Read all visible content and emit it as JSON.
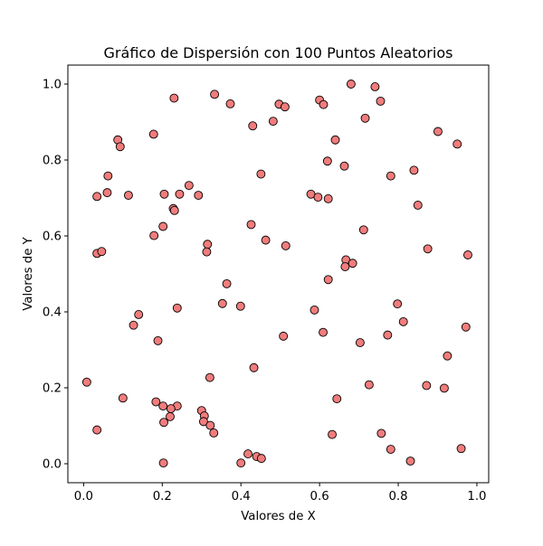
{
  "colors": {
    "point_fill": "#f07c7c",
    "point_edge": "#000000",
    "axis": "#000000"
  },
  "chart_data": {
    "type": "scatter",
    "title": "Gráfico de Dispersión con 100 Puntos Aleatorios",
    "xlabel": "Valores de X",
    "ylabel": "Valores de Y",
    "xlim": [
      -0.04,
      1.03
    ],
    "ylim": [
      -0.05,
      1.05
    ],
    "xticks": [
      "0.0",
      "0.2",
      "0.4",
      "0.6",
      "0.8",
      "1.0"
    ],
    "yticks": [
      "0.0",
      "0.2",
      "0.4",
      "0.6",
      "0.8",
      "1.0"
    ],
    "grid": false,
    "legend": "none",
    "points": [
      {
        "x": 0.23,
        "y": 0.963
      },
      {
        "x": 0.333,
        "y": 0.973
      },
      {
        "x": 0.373,
        "y": 0.948
      },
      {
        "x": 0.497,
        "y": 0.947
      },
      {
        "x": 0.512,
        "y": 0.94
      },
      {
        "x": 0.6,
        "y": 0.958
      },
      {
        "x": 0.61,
        "y": 0.946
      },
      {
        "x": 0.68,
        "y": 1.0
      },
      {
        "x": 0.741,
        "y": 0.993
      },
      {
        "x": 0.755,
        "y": 0.955
      },
      {
        "x": 0.716,
        "y": 0.91
      },
      {
        "x": 0.43,
        "y": 0.89
      },
      {
        "x": 0.482,
        "y": 0.902
      },
      {
        "x": 0.087,
        "y": 0.853
      },
      {
        "x": 0.093,
        "y": 0.835
      },
      {
        "x": 0.178,
        "y": 0.868
      },
      {
        "x": 0.64,
        "y": 0.853
      },
      {
        "x": 0.901,
        "y": 0.875
      },
      {
        "x": 0.95,
        "y": 0.842
      },
      {
        "x": 0.62,
        "y": 0.797
      },
      {
        "x": 0.663,
        "y": 0.784
      },
      {
        "x": 0.84,
        "y": 0.773
      },
      {
        "x": 0.781,
        "y": 0.758
      },
      {
        "x": 0.062,
        "y": 0.758
      },
      {
        "x": 0.451,
        "y": 0.763
      },
      {
        "x": 0.268,
        "y": 0.733
      },
      {
        "x": 0.034,
        "y": 0.704
      },
      {
        "x": 0.06,
        "y": 0.714
      },
      {
        "x": 0.114,
        "y": 0.707
      },
      {
        "x": 0.205,
        "y": 0.71
      },
      {
        "x": 0.244,
        "y": 0.71
      },
      {
        "x": 0.292,
        "y": 0.707
      },
      {
        "x": 0.578,
        "y": 0.71
      },
      {
        "x": 0.596,
        "y": 0.702
      },
      {
        "x": 0.622,
        "y": 0.698
      },
      {
        "x": 0.85,
        "y": 0.681
      },
      {
        "x": 0.228,
        "y": 0.672
      },
      {
        "x": 0.231,
        "y": 0.667
      },
      {
        "x": 0.202,
        "y": 0.625
      },
      {
        "x": 0.426,
        "y": 0.63
      },
      {
        "x": 0.712,
        "y": 0.616
      },
      {
        "x": 0.179,
        "y": 0.601
      },
      {
        "x": 0.463,
        "y": 0.589
      },
      {
        "x": 0.514,
        "y": 0.574
      },
      {
        "x": 0.315,
        "y": 0.578
      },
      {
        "x": 0.313,
        "y": 0.558
      },
      {
        "x": 0.034,
        "y": 0.554
      },
      {
        "x": 0.046,
        "y": 0.559
      },
      {
        "x": 0.875,
        "y": 0.566
      },
      {
        "x": 0.977,
        "y": 0.55
      },
      {
        "x": 0.667,
        "y": 0.537
      },
      {
        "x": 0.684,
        "y": 0.528
      },
      {
        "x": 0.665,
        "y": 0.519
      },
      {
        "x": 0.622,
        "y": 0.485
      },
      {
        "x": 0.364,
        "y": 0.474
      },
      {
        "x": 0.238,
        "y": 0.41
      },
      {
        "x": 0.353,
        "y": 0.422
      },
      {
        "x": 0.399,
        "y": 0.415
      },
      {
        "x": 0.14,
        "y": 0.393
      },
      {
        "x": 0.127,
        "y": 0.365
      },
      {
        "x": 0.587,
        "y": 0.405
      },
      {
        "x": 0.798,
        "y": 0.421
      },
      {
        "x": 0.813,
        "y": 0.374
      },
      {
        "x": 0.972,
        "y": 0.36
      },
      {
        "x": 0.189,
        "y": 0.324
      },
      {
        "x": 0.508,
        "y": 0.336
      },
      {
        "x": 0.609,
        "y": 0.346
      },
      {
        "x": 0.703,
        "y": 0.319
      },
      {
        "x": 0.773,
        "y": 0.339
      },
      {
        "x": 0.925,
        "y": 0.284
      },
      {
        "x": 0.321,
        "y": 0.227
      },
      {
        "x": 0.433,
        "y": 0.253
      },
      {
        "x": 0.008,
        "y": 0.215
      },
      {
        "x": 0.726,
        "y": 0.208
      },
      {
        "x": 0.872,
        "y": 0.206
      },
      {
        "x": 0.917,
        "y": 0.199
      },
      {
        "x": 0.1,
        "y": 0.173
      },
      {
        "x": 0.644,
        "y": 0.171
      },
      {
        "x": 0.184,
        "y": 0.163
      },
      {
        "x": 0.202,
        "y": 0.152
      },
      {
        "x": 0.238,
        "y": 0.152
      },
      {
        "x": 0.222,
        "y": 0.145
      },
      {
        "x": 0.3,
        "y": 0.14
      },
      {
        "x": 0.307,
        "y": 0.126
      },
      {
        "x": 0.22,
        "y": 0.124
      },
      {
        "x": 0.305,
        "y": 0.111
      },
      {
        "x": 0.204,
        "y": 0.109
      },
      {
        "x": 0.322,
        "y": 0.101
      },
      {
        "x": 0.034,
        "y": 0.089
      },
      {
        "x": 0.331,
        "y": 0.081
      },
      {
        "x": 0.632,
        "y": 0.077
      },
      {
        "x": 0.757,
        "y": 0.08
      },
      {
        "x": 0.781,
        "y": 0.038
      },
      {
        "x": 0.96,
        "y": 0.04
      },
      {
        "x": 0.418,
        "y": 0.026
      },
      {
        "x": 0.44,
        "y": 0.019
      },
      {
        "x": 0.452,
        "y": 0.014
      },
      {
        "x": 0.831,
        "y": 0.007
      },
      {
        "x": 0.4,
        "y": 0.002
      },
      {
        "x": 0.203,
        "y": 0.002
      }
    ]
  }
}
